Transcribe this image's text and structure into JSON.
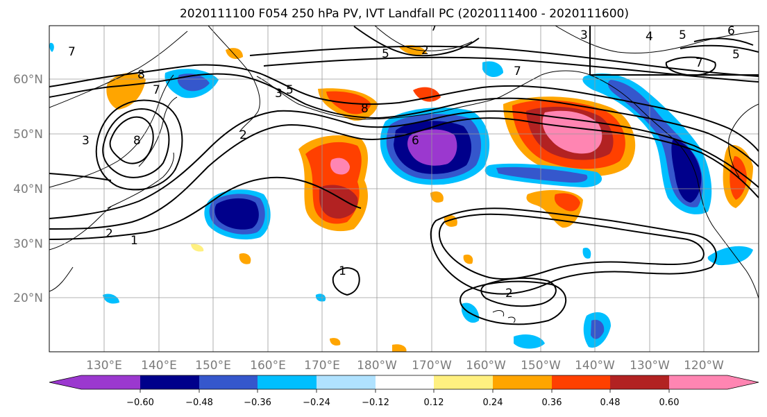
{
  "title": "2020111100 F054 250 hPa PV, IVT Landfall PC (2020111400 - 2020111600)",
  "map": {
    "lon_labels": [
      "130°E",
      "140°E",
      "150°E",
      "160°E",
      "170°E",
      "180°W",
      "170°W",
      "160°W",
      "150°W",
      "140°W",
      "130°W",
      "120°W"
    ],
    "lat_labels": [
      "60°N",
      "50°N",
      "40°N",
      "30°N",
      "20°N"
    ],
    "contour_labels": [
      "7",
      "8",
      "7",
      "8",
      "3",
      "2",
      "3",
      "5",
      "5",
      "7",
      "2",
      "8",
      "6",
      "7",
      "3",
      "4",
      "5",
      "6",
      "5",
      "7",
      "2",
      "1",
      "1",
      "2"
    ]
  },
  "colorbar": {
    "tick_labels": [
      "−0.60",
      "−0.48",
      "−0.36",
      "−0.24",
      "−0.12",
      "0.12",
      "0.24",
      "0.36",
      "0.48",
      "0.60"
    ],
    "colors": {
      "neg_extreme": "#9b38cf",
      "neg_060": "#00008b",
      "neg_048": "#3557cc",
      "neg_036": "#00bfff",
      "neg_024": "#b0e2ff",
      "neutral": "#ffffff",
      "pos_012": "#fff080",
      "pos_024": "#ffa500",
      "pos_036": "#ff4000",
      "pos_048": "#b22222",
      "pos_060": "#ff85b2"
    }
  }
}
